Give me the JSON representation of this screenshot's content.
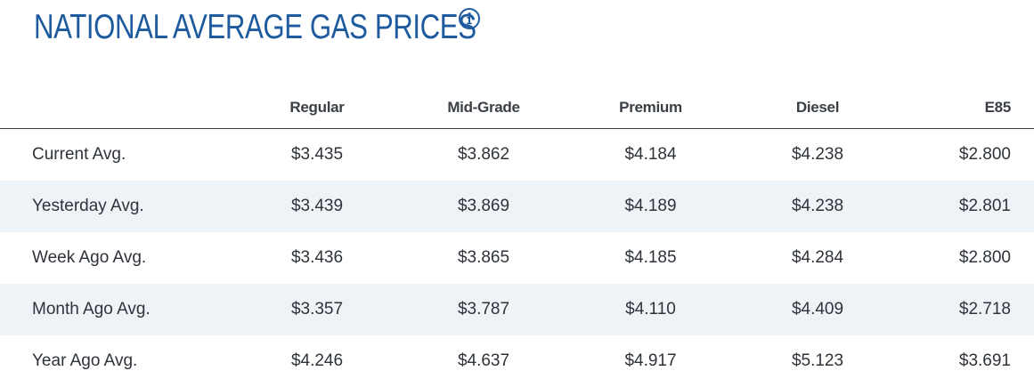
{
  "header": {
    "title": "NATIONAL AVERAGE GAS PRICES",
    "info_icon": "info-icon"
  },
  "colors": {
    "title": "#1e5a9e",
    "alt_row": "#eef3f8",
    "header_rule": "#3c3c3c"
  },
  "table": {
    "columns": [
      "",
      "Regular",
      "Mid-Grade",
      "Premium",
      "Diesel",
      "E85"
    ],
    "rows": [
      {
        "label": "Current Avg.",
        "values": [
          "$3.435",
          "$3.862",
          "$4.184",
          "$4.238",
          "$2.800"
        ]
      },
      {
        "label": "Yesterday Avg.",
        "values": [
          "$3.439",
          "$3.869",
          "$4.189",
          "$4.238",
          "$2.801"
        ]
      },
      {
        "label": "Week Ago Avg.",
        "values": [
          "$3.436",
          "$3.865",
          "$4.185",
          "$4.284",
          "$2.800"
        ]
      },
      {
        "label": "Month Ago Avg.",
        "values": [
          "$3.357",
          "$3.787",
          "$4.110",
          "$4.409",
          "$2.718"
        ]
      },
      {
        "label": "Year Ago Avg.",
        "values": [
          "$4.246",
          "$4.637",
          "$4.917",
          "$5.123",
          "$3.691"
        ]
      }
    ]
  }
}
